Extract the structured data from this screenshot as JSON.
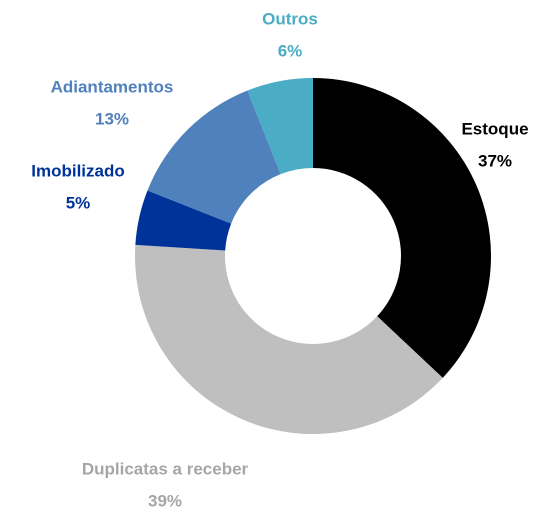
{
  "chart_data": {
    "type": "donut",
    "categories": [
      "Estoque",
      "Duplicatas a receber",
      "Imobilizado",
      "Adiantamentos",
      "Outros"
    ],
    "values": [
      37,
      39,
      5,
      13,
      6
    ],
    "value_labels": [
      "37%",
      "39%",
      "5%",
      "13%",
      "6%"
    ],
    "colors": [
      "#000000",
      "#bfbfbf",
      "#003399",
      "#4f81bd",
      "#4bacc6"
    ]
  }
}
